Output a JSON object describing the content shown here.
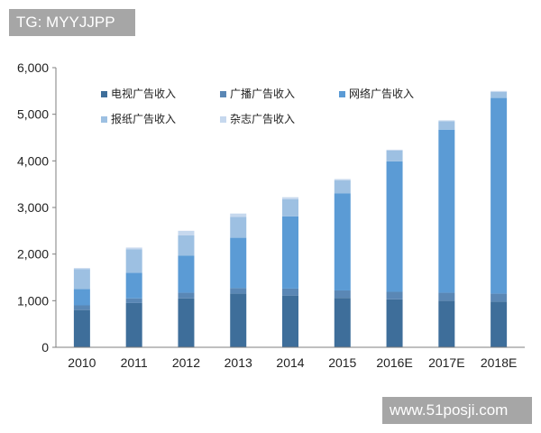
{
  "watermarks": {
    "top_left": "TG: MYYJJPP",
    "bottom_right": "www.51posji.com"
  },
  "chart_data": {
    "type": "bar",
    "stacked": true,
    "categories": [
      "2010",
      "2011",
      "2012",
      "2013",
      "2014",
      "2015",
      "2016E",
      "2017E",
      "2018E"
    ],
    "series": [
      {
        "name": "电视广告收入",
        "color": "#3e6e9a",
        "values": [
          800,
          950,
          1050,
          1150,
          1110,
          1060,
          1030,
          1000,
          980
        ]
      },
      {
        "name": "广播广告收入",
        "color": "#5a87b5",
        "values": [
          100,
          100,
          120,
          120,
          150,
          160,
          160,
          170,
          170
        ]
      },
      {
        "name": "网络广告收入",
        "color": "#5b9bd5",
        "values": [
          350,
          550,
          800,
          1080,
          1550,
          2080,
          2800,
          3500,
          4200
        ]
      },
      {
        "name": "报纸广告收入",
        "color": "#9dc0e2",
        "values": [
          430,
          500,
          430,
          450,
          370,
          280,
          230,
          180,
          130
        ]
      },
      {
        "name": "杂志广告收入",
        "color": "#c6d8ee",
        "values": [
          20,
          40,
          100,
          70,
          40,
          30,
          20,
          20,
          20
        ]
      }
    ],
    "ylim": [
      0,
      6000
    ],
    "yticks": [
      "0",
      "1,000",
      "2,000",
      "3,000",
      "4,000",
      "5,000",
      "6,000"
    ],
    "legend_position": "top-left",
    "grid": false
  }
}
